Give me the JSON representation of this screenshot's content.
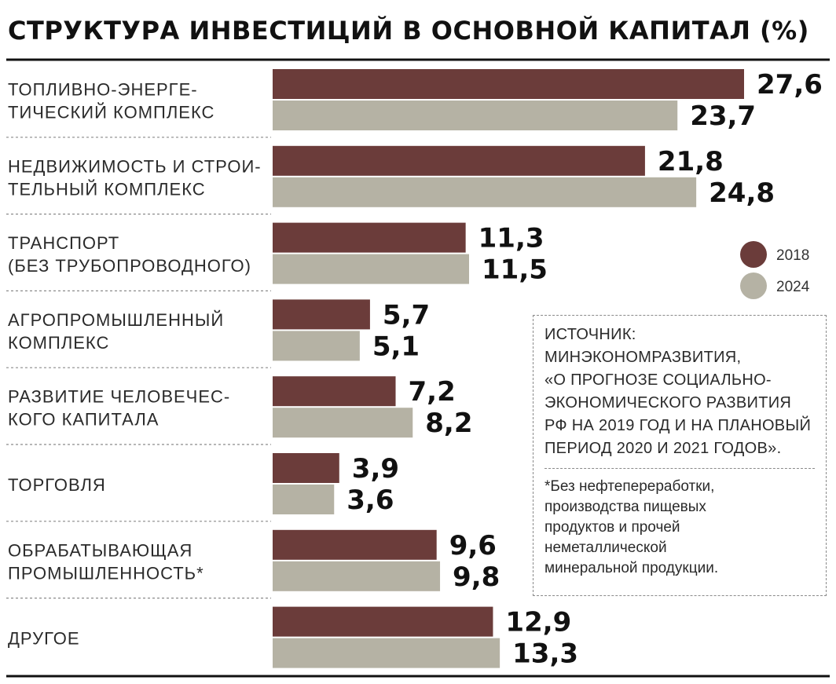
{
  "chart_data": {
    "type": "bar",
    "orientation": "horizontal",
    "title": "СТРУКТУРА ИНВЕСТИЦИЙ В ОСНОВНОЙ КАПИТАЛ (%)",
    "categories": [
      [
        "ТОПЛИВНО-ЭНЕРГЕ-",
        "ТИЧЕСКИЙ КОМПЛЕКС"
      ],
      [
        "НЕДВИЖИМОСТЬ И СТРОИ-",
        "ТЕЛЬНЫЙ КОМПЛЕКС"
      ],
      [
        "ТРАНСПОРТ",
        "(БЕЗ ТРУБОПРОВОДНОГО)"
      ],
      [
        "АГРОПРОМЫШЛЕННЫЙ",
        "КОМПЛЕКС"
      ],
      [
        "РАЗВИТИЕ  ЧЕЛОВЕЧЕС-",
        "КОГО КАПИТАЛА"
      ],
      [
        "ТОРГОВЛЯ"
      ],
      [
        "ОБРАБАТЫВАЮЩАЯ",
        "ПРОМЫШЛЕННОСТЬ*"
      ],
      [
        "ДРУГОЕ"
      ]
    ],
    "series": [
      {
        "name": "2018",
        "color": "#6b3c3a",
        "values": [
          27.6,
          21.8,
          11.3,
          5.7,
          7.2,
          3.9,
          9.6,
          12.9
        ],
        "labels": [
          "27,6",
          "21,8",
          "11,3",
          "5,7",
          "7,2",
          "3,9",
          "9,6",
          "12,9"
        ]
      },
      {
        "name": "2024",
        "color": "#b5b2a4",
        "values": [
          23.7,
          24.8,
          11.5,
          5.1,
          8.2,
          3.6,
          9.8,
          13.3
        ],
        "labels": [
          "23,7",
          "24,8",
          "11,5",
          "5,1",
          "8,2",
          "3,6",
          "9,8",
          "13,3"
        ]
      }
    ],
    "xlim": [
      0,
      27.6
    ],
    "legend_position": "right",
    "grid": false
  },
  "source": {
    "lines": [
      "ИСТОЧНИК:",
      "МИНЭКОНОМРАЗВИТИЯ,",
      "«О ПРОГНОЗЕ СОЦИАЛЬНО-",
      "ЭКОНОМИЧЕСКОГО РАЗВИТИЯ",
      "РФ НА 2019 ГОД И НА ПЛАНОВЫЙ",
      "ПЕРИОД 2020 И 2021 ГОДОВ»."
    ],
    "note_lines": [
      "*Без нефтепереработки,",
      "производства пищевых",
      "продуктов и прочей",
      "неметаллической",
      "минеральной продукции."
    ]
  }
}
